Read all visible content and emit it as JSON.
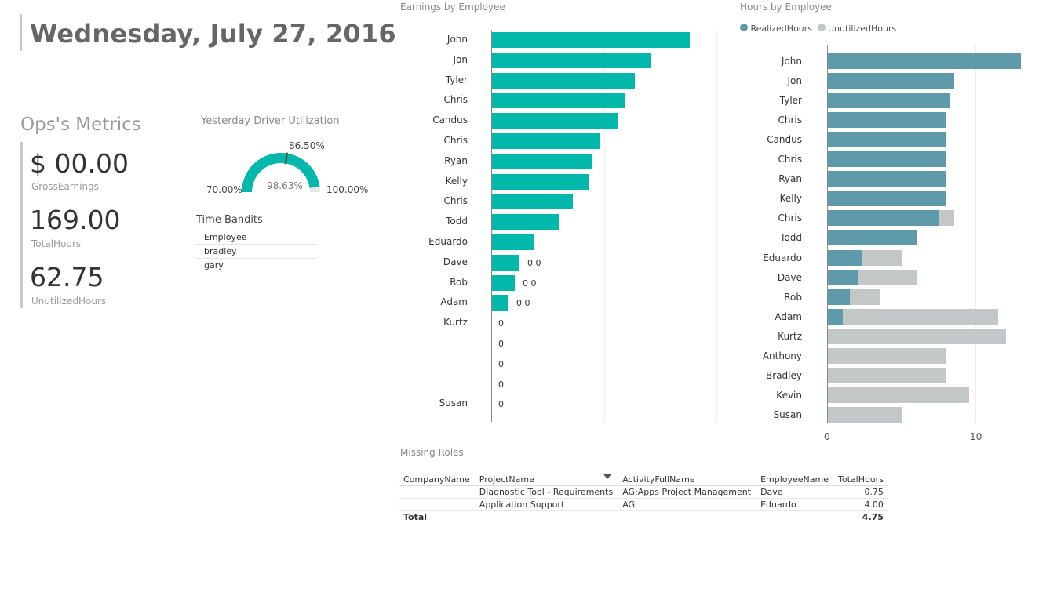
{
  "page": {
    "date_title": "Wednesday, July 27, 2016"
  },
  "ops": {
    "title": "Ops's Metrics",
    "kpis": [
      {
        "value": "$ 00.00",
        "label": "GrossEarnings"
      },
      {
        "value": "169.00",
        "label": "TotalHours"
      },
      {
        "value": "62.75",
        "label": "UnutilizedHours"
      }
    ]
  },
  "gauge": {
    "title": "Yesterday Driver Utilization",
    "min_label": "70.00%",
    "max_label": "100.00%",
    "value_label": "98.63%",
    "target_label": "86.50%",
    "min": 70,
    "max": 100,
    "value": 98.63,
    "target": 86.5,
    "fill_color": "#01b8aa"
  },
  "time_bandits": {
    "title": "Time Bandits",
    "header": "Employee",
    "rows": [
      "bradley",
      "gary"
    ]
  },
  "chart_data": [
    {
      "type": "bar",
      "orientation": "horizontal",
      "title": "Earnings by Employee",
      "color": "#01b8aa",
      "categories": [
        "John",
        "Jon",
        "Tyler",
        "Chris",
        "Candus",
        "Chris",
        "Ryan",
        "Kelly",
        "Chris",
        "Todd",
        "Eduardo",
        "Dave",
        "Rob",
        "Adam",
        "Kurtz",
        "",
        "",
        "",
        "Susan"
      ],
      "values": [
        252,
        202,
        182,
        170,
        160,
        138,
        128,
        124,
        103,
        86,
        53,
        35,
        29,
        21,
        0,
        0,
        0,
        0,
        0
      ],
      "data_labels": [
        "",
        "",
        "",
        "",
        "",
        "",
        "",
        "",
        "",
        "",
        "",
        "0 0",
        "0 0",
        "0 0",
        "0",
        "0",
        "0",
        "0",
        "0"
      ],
      "xlim": [
        0,
        290
      ]
    },
    {
      "type": "bar",
      "orientation": "horizontal",
      "stacked": true,
      "title": "Hours by Employee",
      "legend": "top-left",
      "categories": [
        "John",
        "Jon",
        "Tyler",
        "Chris",
        "Candus",
        "Chris",
        "Ryan",
        "Kelly",
        "Chris",
        "Todd",
        "Eduardo",
        "Dave",
        "Rob",
        "Adam",
        "Kurtz",
        "Anthony",
        "Bradley",
        "Kevin",
        "Susan"
      ],
      "series": [
        {
          "name": "RealizedHours",
          "color": "#5f9aab",
          "values": [
            13,
            8.5,
            8.25,
            8,
            8,
            8,
            8,
            8,
            7.5,
            6,
            2.25,
            2,
            1.5,
            1,
            0,
            0,
            0,
            0,
            0
          ]
        },
        {
          "name": "UnutilizedHours",
          "color": "#c3c7c7",
          "values": [
            0,
            0,
            0,
            0,
            0,
            0,
            0,
            0,
            1,
            0,
            2.75,
            4,
            2,
            10.5,
            12,
            8,
            8,
            9.5,
            5
          ]
        }
      ],
      "x_ticks": [
        "0",
        "10"
      ],
      "xlim": [
        0,
        13.2
      ]
    }
  ],
  "missing_roles": {
    "title": "Missing Roles",
    "columns": [
      "CompanyName",
      "ProjectName",
      "ActivityFullName",
      "EmployeeName",
      "TotalHours"
    ],
    "rows": [
      [
        "",
        "Diagnostic Tool - Requirements",
        "AG:Apps Project Management",
        "Dave",
        "0.75"
      ],
      [
        "",
        "Application Support",
        "AG",
        "Eduardo",
        "4.00"
      ]
    ],
    "total_label": "Total",
    "total_value": "4.75"
  }
}
